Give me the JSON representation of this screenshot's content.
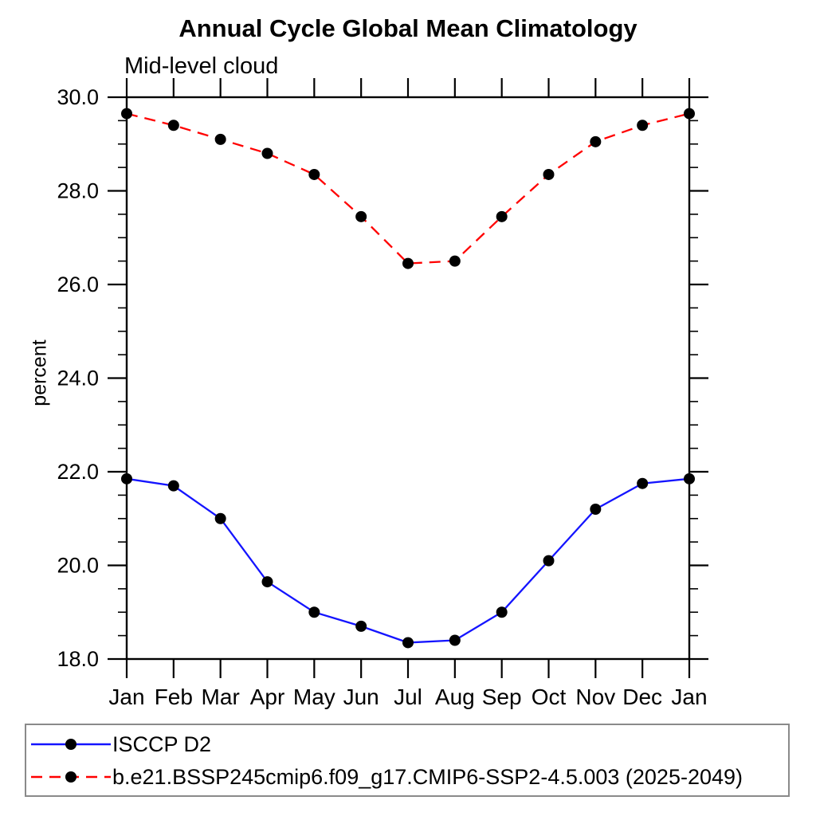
{
  "chart_data": {
    "type": "line",
    "title": "Annual Cycle Global Mean Climatology",
    "subtitle": "Mid-level cloud",
    "ylabel": "percent",
    "x_categories": [
      "Jan",
      "Feb",
      "Mar",
      "Apr",
      "May",
      "Jun",
      "Jul",
      "Aug",
      "Sep",
      "Oct",
      "Nov",
      "Dec",
      "Jan"
    ],
    "ylim": [
      18.0,
      30.0
    ],
    "y_major_ticks": [
      18.0,
      20.0,
      22.0,
      24.0,
      26.0,
      28.0,
      30.0
    ],
    "y_major_tick_labels": [
      "18.0",
      "20.0",
      "22.0",
      "24.0",
      "26.0",
      "28.0",
      "30.0"
    ],
    "y_minor_tick_step": 0.5,
    "grid": false,
    "legend_position": "bottom-left-box",
    "axis_color": "#000000",
    "series": [
      {
        "name": "ISCCP D2",
        "color": "#1414ff",
        "line_style": "solid",
        "marker": "filled-circle",
        "marker_color": "#000000",
        "values": [
          21.85,
          21.7,
          21.0,
          19.65,
          19.0,
          18.7,
          18.35,
          18.4,
          19.0,
          20.1,
          21.2,
          21.75,
          21.85
        ]
      },
      {
        "name": "b.e21.BSSP245cmip6.f09_g17.CMIP6-SSP2-4.5.003 (2025-2049)",
        "color": "#ff0000",
        "line_style": "dashed",
        "marker": "filled-circle",
        "marker_color": "#000000",
        "values": [
          29.65,
          29.4,
          29.1,
          28.8,
          28.35,
          27.45,
          26.45,
          26.5,
          27.45,
          28.35,
          29.05,
          29.4,
          29.65
        ]
      }
    ]
  }
}
